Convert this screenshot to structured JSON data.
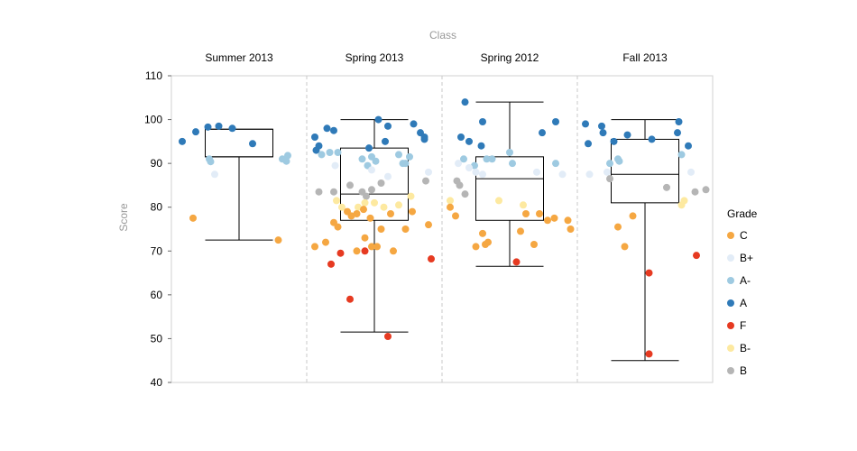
{
  "chart_data": {
    "type": "scatter",
    "column_title": "Class",
    "ylabel": "Score",
    "ylim": [
      40,
      110
    ],
    "yticks": [
      40,
      50,
      60,
      70,
      80,
      90,
      100,
      110
    ],
    "legend": {
      "title": "Grade",
      "placement": "right"
    },
    "grades": [
      {
        "name": "C",
        "color": "#f5a742"
      },
      {
        "name": "B+",
        "color": "#e2ecf7"
      },
      {
        "name": "A-",
        "color": "#9ecae1"
      },
      {
        "name": "A",
        "color": "#2f7ab8"
      },
      {
        "name": "F",
        "color": "#e63a21"
      },
      {
        "name": "B-",
        "color": "#fde9a0"
      },
      {
        "name": "B",
        "color": "#b5b5b5"
      }
    ],
    "classes": [
      {
        "name": "Summer 2013",
        "box": {
          "min": 72.5,
          "q1": 91.5,
          "median": 91.5,
          "q3": 97.8,
          "max": 97.8
        },
        "points": [
          {
            "g": "A",
            "j": 0.08,
            "y": 95
          },
          {
            "g": "A",
            "j": 0.18,
            "y": 97.2
          },
          {
            "g": "A",
            "j": 0.27,
            "y": 98.3
          },
          {
            "g": "A",
            "j": 0.35,
            "y": 98.5
          },
          {
            "g": "A",
            "j": 0.45,
            "y": 98
          },
          {
            "g": "A",
            "j": 0.6,
            "y": 94.5
          },
          {
            "g": "A-",
            "j": 0.28,
            "y": 91
          },
          {
            "g": "A-",
            "j": 0.29,
            "y": 90.4
          },
          {
            "g": "A-",
            "j": 0.82,
            "y": 91
          },
          {
            "g": "A-",
            "j": 0.86,
            "y": 91.8
          },
          {
            "g": "A-",
            "j": 0.85,
            "y": 90.5
          },
          {
            "g": "B+",
            "j": 0.32,
            "y": 87.5
          },
          {
            "g": "C",
            "j": 0.16,
            "y": 77.5
          },
          {
            "g": "C",
            "j": 0.79,
            "y": 72.5
          }
        ]
      },
      {
        "name": "Spring 2013",
        "box": {
          "min": 51.5,
          "q1": 77,
          "median": 83,
          "q3": 93.5,
          "max": 100
        },
        "points": [
          {
            "g": "A",
            "j": 0.06,
            "y": 96
          },
          {
            "g": "A",
            "j": 0.09,
            "y": 94
          },
          {
            "g": "A",
            "j": 0.07,
            "y": 93
          },
          {
            "g": "A",
            "j": 0.15,
            "y": 98
          },
          {
            "g": "A",
            "j": 0.2,
            "y": 97.5
          },
          {
            "g": "A",
            "j": 0.46,
            "y": 93.5
          },
          {
            "g": "A",
            "j": 0.53,
            "y": 100
          },
          {
            "g": "A",
            "j": 0.6,
            "y": 98.5
          },
          {
            "g": "A",
            "j": 0.58,
            "y": 95
          },
          {
            "g": "A",
            "j": 0.79,
            "y": 99
          },
          {
            "g": "A",
            "j": 0.84,
            "y": 97
          },
          {
            "g": "A",
            "j": 0.87,
            "y": 95.5
          },
          {
            "g": "A",
            "j": 0.87,
            "y": 96
          },
          {
            "g": "A-",
            "j": 0.11,
            "y": 92
          },
          {
            "g": "A-",
            "j": 0.17,
            "y": 92.5
          },
          {
            "g": "A-",
            "j": 0.23,
            "y": 92.5
          },
          {
            "g": "A-",
            "j": 0.41,
            "y": 91
          },
          {
            "g": "A-",
            "j": 0.45,
            "y": 89.5
          },
          {
            "g": "A-",
            "j": 0.48,
            "y": 91.5
          },
          {
            "g": "A-",
            "j": 0.51,
            "y": 90.5
          },
          {
            "g": "A-",
            "j": 0.68,
            "y": 92
          },
          {
            "g": "A-",
            "j": 0.71,
            "y": 90
          },
          {
            "g": "A-",
            "j": 0.73,
            "y": 90
          },
          {
            "g": "A-",
            "j": 0.76,
            "y": 91.5
          },
          {
            "g": "B+",
            "j": 0.21,
            "y": 89.5
          },
          {
            "g": "B+",
            "j": 0.48,
            "y": 88.5
          },
          {
            "g": "B+",
            "j": 0.6,
            "y": 87
          },
          {
            "g": "B+",
            "j": 0.9,
            "y": 88
          },
          {
            "g": "B",
            "j": 0.09,
            "y": 83.5
          },
          {
            "g": "B",
            "j": 0.2,
            "y": 83.5
          },
          {
            "g": "B",
            "j": 0.32,
            "y": 85
          },
          {
            "g": "B",
            "j": 0.41,
            "y": 83.5
          },
          {
            "g": "B",
            "j": 0.44,
            "y": 82.5
          },
          {
            "g": "B",
            "j": 0.55,
            "y": 85.5
          },
          {
            "g": "B",
            "j": 0.88,
            "y": 86
          },
          {
            "g": "B",
            "j": 0.48,
            "y": 84
          },
          {
            "g": "B-",
            "j": 0.22,
            "y": 81.5
          },
          {
            "g": "B-",
            "j": 0.26,
            "y": 80
          },
          {
            "g": "B-",
            "j": 0.38,
            "y": 80
          },
          {
            "g": "B-",
            "j": 0.43,
            "y": 81
          },
          {
            "g": "B-",
            "j": 0.5,
            "y": 81
          },
          {
            "g": "B-",
            "j": 0.57,
            "y": 80
          },
          {
            "g": "B-",
            "j": 0.68,
            "y": 80.5
          },
          {
            "g": "B-",
            "j": 0.77,
            "y": 82.5
          },
          {
            "g": "C",
            "j": 0.06,
            "y": 71
          },
          {
            "g": "C",
            "j": 0.14,
            "y": 72
          },
          {
            "g": "C",
            "j": 0.2,
            "y": 76.5
          },
          {
            "g": "C",
            "j": 0.23,
            "y": 75.5
          },
          {
            "g": "C",
            "j": 0.3,
            "y": 79
          },
          {
            "g": "C",
            "j": 0.33,
            "y": 78
          },
          {
            "g": "C",
            "j": 0.37,
            "y": 78.5
          },
          {
            "g": "C",
            "j": 0.42,
            "y": 79.5
          },
          {
            "g": "C",
            "j": 0.47,
            "y": 77.5
          },
          {
            "g": "C",
            "j": 0.55,
            "y": 75
          },
          {
            "g": "C",
            "j": 0.62,
            "y": 78.5
          },
          {
            "g": "C",
            "j": 0.73,
            "y": 75
          },
          {
            "g": "C",
            "j": 0.78,
            "y": 79
          },
          {
            "g": "C",
            "j": 0.9,
            "y": 76
          },
          {
            "g": "C",
            "j": 0.37,
            "y": 70
          },
          {
            "g": "C",
            "j": 0.43,
            "y": 73
          },
          {
            "g": "C",
            "j": 0.48,
            "y": 71
          },
          {
            "g": "C",
            "j": 0.52,
            "y": 71
          },
          {
            "g": "C",
            "j": 0.64,
            "y": 70
          },
          {
            "g": "F",
            "j": 0.18,
            "y": 67
          },
          {
            "g": "F",
            "j": 0.25,
            "y": 69.5
          },
          {
            "g": "F",
            "j": 0.43,
            "y": 70
          },
          {
            "g": "F",
            "j": 0.32,
            "y": 59
          },
          {
            "g": "F",
            "j": 0.6,
            "y": 50.5
          },
          {
            "g": "F",
            "j": 0.92,
            "y": 68.2
          }
        ]
      },
      {
        "name": "Spring 2012",
        "box": {
          "min": 66.5,
          "q1": 77,
          "median": 86.5,
          "q3": 91.5,
          "max": 104
        },
        "points": [
          {
            "g": "A",
            "j": 0.17,
            "y": 104
          },
          {
            "g": "A",
            "j": 0.14,
            "y": 96
          },
          {
            "g": "A",
            "j": 0.2,
            "y": 95
          },
          {
            "g": "A",
            "j": 0.3,
            "y": 99.5
          },
          {
            "g": "A",
            "j": 0.29,
            "y": 94
          },
          {
            "g": "A",
            "j": 0.74,
            "y": 97
          },
          {
            "g": "A",
            "j": 0.84,
            "y": 99.5
          },
          {
            "g": "A-",
            "j": 0.16,
            "y": 91
          },
          {
            "g": "A-",
            "j": 0.24,
            "y": 89.5
          },
          {
            "g": "A-",
            "j": 0.33,
            "y": 91
          },
          {
            "g": "A-",
            "j": 0.37,
            "y": 91
          },
          {
            "g": "A-",
            "j": 0.5,
            "y": 92.5
          },
          {
            "g": "A-",
            "j": 0.52,
            "y": 90
          },
          {
            "g": "A-",
            "j": 0.84,
            "y": 90
          },
          {
            "g": "B+",
            "j": 0.12,
            "y": 90
          },
          {
            "g": "B+",
            "j": 0.2,
            "y": 89
          },
          {
            "g": "B+",
            "j": 0.25,
            "y": 88
          },
          {
            "g": "B+",
            "j": 0.3,
            "y": 87.5
          },
          {
            "g": "B+",
            "j": 0.7,
            "y": 88
          },
          {
            "g": "B+",
            "j": 0.89,
            "y": 87.5
          },
          {
            "g": "B",
            "j": 0.11,
            "y": 86
          },
          {
            "g": "B",
            "j": 0.13,
            "y": 85
          },
          {
            "g": "B",
            "j": 0.17,
            "y": 83
          },
          {
            "g": "B-",
            "j": 0.06,
            "y": 81.5
          },
          {
            "g": "B-",
            "j": 0.42,
            "y": 81.5
          },
          {
            "g": "B-",
            "j": 0.6,
            "y": 80.5
          },
          {
            "g": "C",
            "j": 0.06,
            "y": 80
          },
          {
            "g": "C",
            "j": 0.1,
            "y": 78
          },
          {
            "g": "C",
            "j": 0.25,
            "y": 71
          },
          {
            "g": "C",
            "j": 0.3,
            "y": 74
          },
          {
            "g": "C",
            "j": 0.32,
            "y": 71.5
          },
          {
            "g": "C",
            "j": 0.34,
            "y": 72
          },
          {
            "g": "C",
            "j": 0.58,
            "y": 74.5
          },
          {
            "g": "C",
            "j": 0.62,
            "y": 78.5
          },
          {
            "g": "C",
            "j": 0.68,
            "y": 71.5
          },
          {
            "g": "C",
            "j": 0.72,
            "y": 78.5
          },
          {
            "g": "C",
            "j": 0.78,
            "y": 77
          },
          {
            "g": "C",
            "j": 0.83,
            "y": 77.5
          },
          {
            "g": "C",
            "j": 0.93,
            "y": 77
          },
          {
            "g": "C",
            "j": 0.95,
            "y": 75
          },
          {
            "g": "F",
            "j": 0.55,
            "y": 67.5
          }
        ]
      },
      {
        "name": "Fall 2013",
        "box": {
          "min": 45,
          "q1": 81,
          "median": 87.5,
          "q3": 95.5,
          "max": 100
        },
        "points": [
          {
            "g": "A",
            "j": 0.06,
            "y": 99
          },
          {
            "g": "A",
            "j": 0.08,
            "y": 94.5
          },
          {
            "g": "A",
            "j": 0.18,
            "y": 98.5
          },
          {
            "g": "A",
            "j": 0.19,
            "y": 97
          },
          {
            "g": "A",
            "j": 0.27,
            "y": 95
          },
          {
            "g": "A",
            "j": 0.37,
            "y": 96.5
          },
          {
            "g": "A",
            "j": 0.55,
            "y": 95.5
          },
          {
            "g": "A",
            "j": 0.75,
            "y": 99.5
          },
          {
            "g": "A",
            "j": 0.74,
            "y": 97
          },
          {
            "g": "A",
            "j": 0.82,
            "y": 94
          },
          {
            "g": "A-",
            "j": 0.24,
            "y": 90
          },
          {
            "g": "A-",
            "j": 0.3,
            "y": 91
          },
          {
            "g": "A-",
            "j": 0.31,
            "y": 90.5
          },
          {
            "g": "A-",
            "j": 0.77,
            "y": 92
          },
          {
            "g": "B+",
            "j": 0.09,
            "y": 87.5
          },
          {
            "g": "B+",
            "j": 0.22,
            "y": 88
          },
          {
            "g": "B+",
            "j": 0.84,
            "y": 88
          },
          {
            "g": "B",
            "j": 0.24,
            "y": 86.5
          },
          {
            "g": "B",
            "j": 0.66,
            "y": 84.5
          },
          {
            "g": "B",
            "j": 0.87,
            "y": 83.5
          },
          {
            "g": "B",
            "j": 0.95,
            "y": 84
          },
          {
            "g": "B-",
            "j": 0.77,
            "y": 80.5
          },
          {
            "g": "B-",
            "j": 0.79,
            "y": 81.5
          },
          {
            "g": "C",
            "j": 0.3,
            "y": 75.5
          },
          {
            "g": "C",
            "j": 0.35,
            "y": 71
          },
          {
            "g": "C",
            "j": 0.41,
            "y": 78
          },
          {
            "g": "F",
            "j": 0.53,
            "y": 65
          },
          {
            "g": "F",
            "j": 0.88,
            "y": 69
          },
          {
            "g": "F",
            "j": 0.53,
            "y": 46.5
          }
        ]
      }
    ]
  }
}
